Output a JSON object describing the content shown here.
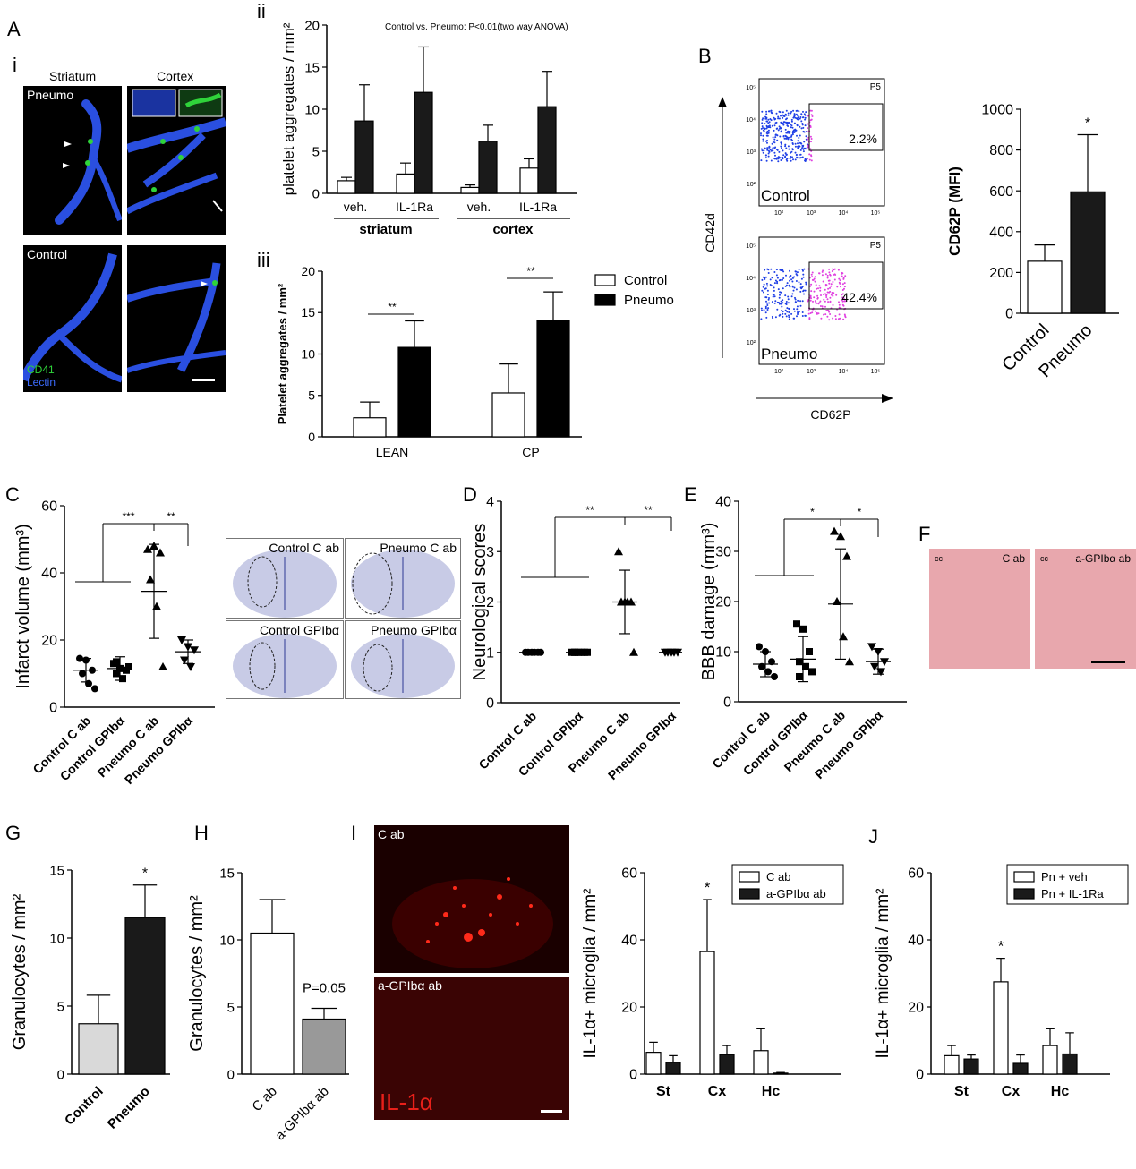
{
  "panel_letters": {
    "A": "A",
    "i": "i",
    "ii": "ii",
    "iii": "iii",
    "B": "B",
    "C": "C",
    "D": "D",
    "E": "E",
    "F": "F",
    "G": "G",
    "H": "H",
    "I": "I",
    "J": "J"
  },
  "panelA_i": {
    "col_striatum": "Striatum",
    "col_cortex": "Cortex",
    "row_pneumo": "Pneumo",
    "row_control": "Control",
    "legend_cd41": "CD41",
    "legend_lectin": "Lectin",
    "colors": {
      "cd41": "#2fd33a",
      "lectin": "#2a4fe0",
      "background": "#000000"
    }
  },
  "panelB": {
    "ylabel": "CD42d",
    "xlabel": "CD62P",
    "gate": "P5",
    "plot1": {
      "label": "Control",
      "percent": "2.2%"
    },
    "plot2": {
      "label": "Pneumo",
      "percent": "42.4%"
    },
    "yticks": [
      "10⁵",
      "10⁴",
      "10³",
      "10²"
    ],
    "xticks": [
      "10²",
      "10³",
      "10⁴",
      "10⁵"
    ]
  },
  "panelC_images": {
    "tl": "Control C ab",
    "tr": "Pneumo C ab",
    "bl": "Control GPIbα",
    "br": "Pneumo GPIbα"
  },
  "panelF": {
    "cc": "cc",
    "left": "C ab",
    "right": "a-GPIbα ab"
  },
  "panelI_images": {
    "top": "C ab",
    "bottom": "a-GPIbα ab",
    "stain": "IL-1α"
  },
  "chart_data": [
    {
      "id": "Aii",
      "type": "bar",
      "annotation": "Control vs. Pneumo: P<0.01(two way ANOVA)",
      "ylabel": "platelet aggregates / mm²",
      "ylim": [
        0,
        20
      ],
      "yticks": [
        0,
        5,
        10,
        15,
        20
      ],
      "categories": [
        "veh.",
        "IL-1Ra",
        "veh.",
        "IL-1Ra"
      ],
      "groups": [
        "striatum",
        "cortex"
      ],
      "series": [
        {
          "name": "Control",
          "color": "#ffffff",
          "values": [
            1.5,
            2.3,
            0.7,
            3.0
          ],
          "errors": [
            0.4,
            1.3,
            0.3,
            1.1
          ]
        },
        {
          "name": "Pneumo",
          "color": "#1a1a1a",
          "values": [
            8.6,
            12.0,
            6.2,
            10.3
          ],
          "errors": [
            4.3,
            5.4,
            1.9,
            4.2
          ]
        }
      ]
    },
    {
      "id": "Aiii",
      "type": "bar",
      "ylabel": "Platelet aggregates / mm²",
      "ylim": [
        0,
        20
      ],
      "yticks": [
        0,
        5,
        10,
        15,
        20
      ],
      "categories": [
        "LEAN",
        "CP"
      ],
      "significance": [
        "**",
        "**"
      ],
      "legend": [
        "Control",
        "Pneumo"
      ],
      "series": [
        {
          "name": "Control",
          "color": "#ffffff",
          "values": [
            2.3,
            5.3
          ],
          "errors": [
            1.9,
            3.5
          ]
        },
        {
          "name": "Pneumo",
          "color": "#000000",
          "values": [
            10.8,
            14.0
          ],
          "errors": [
            3.2,
            3.5
          ]
        }
      ]
    },
    {
      "id": "B_bar",
      "type": "bar",
      "ylabel": "CD62P (MFI)",
      "ylim": [
        0,
        1000
      ],
      "yticks": [
        0,
        200,
        400,
        600,
        800,
        1000
      ],
      "categories": [
        "Control",
        "Pneumo"
      ],
      "significance": "*",
      "values": [
        255,
        595
      ],
      "errors": [
        80,
        280
      ],
      "colors": [
        "#ffffff",
        "#1a1a1a"
      ]
    },
    {
      "id": "C",
      "type": "scatter",
      "ylabel": "Infarct volume (mm³)",
      "ylim": [
        0,
        60
      ],
      "yticks": [
        0,
        20,
        40,
        60
      ],
      "categories": [
        "Control C ab",
        "Control GPIbα",
        "Pneumo C ab",
        "Pneumo GPIbα"
      ],
      "markers": [
        "circle",
        "square",
        "triangle",
        "triangle-down"
      ],
      "points": [
        [
          14.5,
          14,
          11,
          10,
          7,
          5.5
        ],
        [
          13,
          11.5,
          11,
          10,
          8.5,
          12,
          13.5
        ],
        [
          47,
          48,
          46,
          38,
          30,
          12
        ],
        [
          20,
          18,
          17,
          14,
          12
        ]
      ],
      "means": [
        11,
        11.5,
        34.5,
        16.5
      ],
      "sd": [
        3.5,
        3.5,
        14,
        3.5
      ],
      "significance": [
        "***",
        "**"
      ]
    },
    {
      "id": "D",
      "type": "scatter",
      "ylabel": "Neurological scores",
      "ylim": [
        0,
        4
      ],
      "yticks": [
        0,
        1,
        2,
        3,
        4
      ],
      "categories": [
        "Control C ab",
        "Control GPIbα",
        "Pneumo C ab",
        "Pneumo GPIbα"
      ],
      "markers": [
        "circle",
        "square",
        "triangle",
        "triangle-down"
      ],
      "points": [
        [
          1,
          1,
          1,
          1,
          1,
          1
        ],
        [
          1,
          1,
          1,
          1,
          1,
          1,
          1
        ],
        [
          3,
          2,
          2,
          2,
          2,
          1
        ],
        [
          1,
          1,
          1,
          1,
          1
        ]
      ],
      "means": [
        1,
        1,
        2,
        1
      ],
      "sd": [
        0,
        0,
        0.63,
        0
      ],
      "significance": [
        "**",
        "**"
      ]
    },
    {
      "id": "E",
      "type": "scatter",
      "ylabel": "BBB damage (mm³)",
      "ylim": [
        0,
        40
      ],
      "yticks": [
        0,
        10,
        20,
        30,
        40
      ],
      "categories": [
        "Control C ab",
        "Control GPIbα",
        "Pneumo C ab",
        "Pneumo GPIbα"
      ],
      "markers": [
        "circle",
        "square",
        "triangle",
        "triangle-down"
      ],
      "points": [
        [
          11,
          10,
          8,
          7,
          6,
          5
        ],
        [
          15.5,
          14.5,
          10,
          8,
          7,
          6,
          5
        ],
        [
          34,
          33,
          29,
          20,
          13,
          8
        ],
        [
          11,
          10,
          8,
          7,
          6
        ]
      ],
      "means": [
        7.5,
        8.5,
        19.5,
        8
      ],
      "sd": [
        2.5,
        4.5,
        11,
        2.5
      ],
      "significance": [
        "*",
        "*"
      ]
    },
    {
      "id": "G",
      "type": "bar",
      "ylabel": "Granulocytes / mm²",
      "ylim": [
        0,
        15
      ],
      "yticks": [
        0,
        5,
        10,
        15
      ],
      "categories": [
        "Control",
        "Pneumo"
      ],
      "significance": "*",
      "values": [
        3.7,
        11.5
      ],
      "errors": [
        2.1,
        2.4
      ],
      "colors": [
        "#d9d9d9",
        "#1a1a1a"
      ]
    },
    {
      "id": "H",
      "type": "bar",
      "ylabel": "Granulocytes / mm²",
      "ylim": [
        0,
        15
      ],
      "yticks": [
        0,
        5,
        10,
        15
      ],
      "categories": [
        "C ab",
        "a-GPIbα ab"
      ],
      "annotation": "P=0.05",
      "values": [
        10.5,
        4.1
      ],
      "errors": [
        2.5,
        0.8
      ],
      "colors": [
        "#ffffff",
        "#999999"
      ]
    },
    {
      "id": "I",
      "type": "bar",
      "ylabel": "IL-1α+ microglia / mm²",
      "ylim": [
        0,
        60
      ],
      "yticks": [
        0,
        20,
        40,
        60
      ],
      "categories": [
        "St",
        "Cx",
        "Hc"
      ],
      "significance": "*",
      "series": [
        {
          "name": "C ab",
          "color": "#ffffff",
          "values": [
            6.5,
            36.5,
            7
          ],
          "errors": [
            3,
            15.5,
            6.5
          ]
        },
        {
          "name": "a-GPIbα ab",
          "color": "#1a1a1a",
          "values": [
            3.5,
            5.8,
            0.3
          ],
          "errors": [
            2,
            2.7,
            0.2
          ]
        }
      ]
    },
    {
      "id": "J",
      "type": "bar",
      "ylabel": "IL-1α+ microglia / mm²",
      "ylim": [
        0,
        60
      ],
      "yticks": [
        0,
        20,
        40,
        60
      ],
      "categories": [
        "St",
        "Cx",
        "Hc"
      ],
      "significance": "*",
      "series": [
        {
          "name": "Pn + veh",
          "color": "#ffffff",
          "values": [
            5.5,
            27.5,
            8.5
          ],
          "errors": [
            3,
            7,
            5
          ]
        },
        {
          "name": "Pn + IL-1Ra",
          "color": "#1a1a1a",
          "values": [
            4.5,
            3.2,
            6
          ],
          "errors": [
            1.2,
            2.5,
            6.3
          ]
        }
      ]
    }
  ]
}
